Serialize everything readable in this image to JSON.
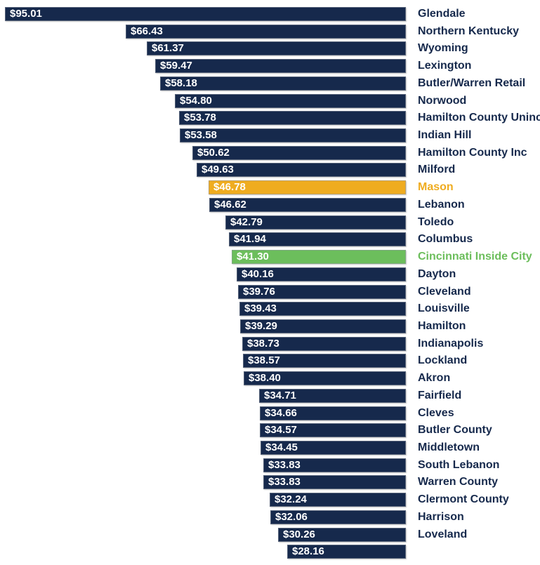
{
  "chart_data": {
    "type": "bar",
    "orientation": "horizontal",
    "bar_alignment": "right-edge-aligned",
    "title": "",
    "xlabel": "",
    "ylabel": "",
    "xlim": [
      0,
      95.01
    ],
    "grid": false,
    "legend": false,
    "value_label_position": "inside-left-of-bar",
    "category_label_position": "right-of-bars",
    "rows": [
      {
        "category": "Glendale",
        "value": 95.01,
        "value_label": "$95.01",
        "color_key": "navy"
      },
      {
        "category": "Northern Kentucky",
        "value": 66.43,
        "value_label": "$66.43",
        "color_key": "navy"
      },
      {
        "category": "Wyoming",
        "value": 61.37,
        "value_label": "$61.37",
        "color_key": "navy"
      },
      {
        "category": "Lexington",
        "value": 59.47,
        "value_label": "$59.47",
        "color_key": "navy"
      },
      {
        "category": "Butler/Warren Retail",
        "value": 58.18,
        "value_label": "$58.18",
        "color_key": "navy"
      },
      {
        "category": "Norwood",
        "value": 54.8,
        "value_label": "$54.80",
        "color_key": "navy"
      },
      {
        "category": "Hamilton County Uninc",
        "value": 53.78,
        "value_label": "$53.78",
        "color_key": "navy"
      },
      {
        "category": "Indian Hill",
        "value": 53.58,
        "value_label": "$53.58",
        "color_key": "navy"
      },
      {
        "category": "Hamilton County Inc",
        "value": 50.62,
        "value_label": "$50.62",
        "color_key": "navy"
      },
      {
        "category": "Milford",
        "value": 49.63,
        "value_label": "$49.63",
        "color_key": "navy"
      },
      {
        "category": "Mason",
        "value": 46.78,
        "value_label": "$46.78",
        "color_key": "gold"
      },
      {
        "category": "Lebanon",
        "value": 46.62,
        "value_label": "$46.62",
        "color_key": "navy"
      },
      {
        "category": "Toledo",
        "value": 42.79,
        "value_label": "$42.79",
        "color_key": "navy"
      },
      {
        "category": "Columbus",
        "value": 41.94,
        "value_label": "$41.94",
        "color_key": "navy"
      },
      {
        "category": "Cincinnati Inside City",
        "value": 41.3,
        "value_label": "$41.30",
        "color_key": "green"
      },
      {
        "category": "Dayton",
        "value": 40.16,
        "value_label": "$40.16",
        "color_key": "navy"
      },
      {
        "category": "Cleveland",
        "value": 39.76,
        "value_label": "$39.76",
        "color_key": "navy"
      },
      {
        "category": "Louisville",
        "value": 39.43,
        "value_label": "$39.43",
        "color_key": "navy"
      },
      {
        "category": "Hamilton",
        "value": 39.29,
        "value_label": "$39.29",
        "color_key": "navy"
      },
      {
        "category": "Indianapolis",
        "value": 38.73,
        "value_label": "$38.73",
        "color_key": "navy"
      },
      {
        "category": "Lockland",
        "value": 38.57,
        "value_label": "$38.57",
        "color_key": "navy"
      },
      {
        "category": "Akron",
        "value": 38.4,
        "value_label": "$38.40",
        "color_key": "navy"
      },
      {
        "category": "Fairfield",
        "value": 34.71,
        "value_label": "$34.71",
        "color_key": "navy"
      },
      {
        "category": "Cleves",
        "value": 34.66,
        "value_label": "$34.66",
        "color_key": "navy"
      },
      {
        "category": "Butler County",
        "value": 34.57,
        "value_label": "$34.57",
        "color_key": "navy"
      },
      {
        "category": "Middletown",
        "value": 34.45,
        "value_label": "$34.45",
        "color_key": "navy"
      },
      {
        "category": "South Lebanon",
        "value": 33.83,
        "value_label": "$33.83",
        "color_key": "navy"
      },
      {
        "category": "Warren County",
        "value": 33.83,
        "value_label": "$33.83",
        "color_key": "navy"
      },
      {
        "category": "Clermont County",
        "value": 32.24,
        "value_label": "$32.24",
        "color_key": "navy"
      },
      {
        "category": "Harrison",
        "value": 32.06,
        "value_label": "$32.06",
        "color_key": "navy"
      },
      {
        "category": "Loveland",
        "value": 30.26,
        "value_label": "$30.26",
        "color_key": "navy"
      },
      {
        "category": "",
        "value": 28.16,
        "value_label": "$28.16",
        "color_key": "navy"
      }
    ]
  },
  "colors": {
    "navy": "#16294C",
    "gold": "#EFAC20",
    "green": "#6CBE5C",
    "value_text": "#FFFFFF",
    "background": "#FFFFFF"
  }
}
